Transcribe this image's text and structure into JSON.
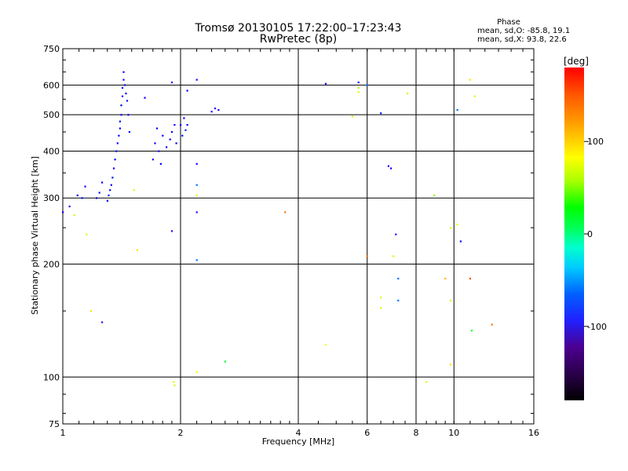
{
  "chart_data": {
    "type": "scatter",
    "title": "Tromsø 20130105 17:22:00–17:23:43",
    "subtitle": "RwPretec (8p)",
    "xlabel": "Frequency [MHz]",
    "ylabel": "Stationary phase Virtual Height [km]",
    "x_scale": "log",
    "y_scale": "log",
    "xlim": [
      1,
      16
    ],
    "ylim": [
      75,
      750
    ],
    "x_ticks": [
      1,
      2,
      4,
      6,
      8,
      10,
      16
    ],
    "x_tick_labels": [
      "1",
      "2",
      "4",
      "6",
      "8",
      "10",
      "16"
    ],
    "y_ticks": [
      75,
      100,
      200,
      300,
      400,
      500,
      600,
      750
    ],
    "y_tick_labels": [
      "75",
      "100",
      "200",
      "300",
      "400",
      "500",
      "600",
      "750"
    ],
    "grid": true,
    "stats": {
      "heading": "Phase",
      "line_o": "mean, sd,O: -85.8, 19.1",
      "line_x": "mean, sd,X:  93.8, 22.6"
    },
    "colorbar": {
      "label": "[deg]",
      "range": [
        -180,
        180
      ],
      "ticks": [
        100,
        0,
        -100
      ],
      "tick_labels": [
        "100",
        "0",
        "-100"
      ]
    },
    "cluster_points": [
      {
        "x": 1.09,
        "y": 305,
        "phase": -90
      },
      {
        "x": 1.12,
        "y": 300,
        "phase": -85
      },
      {
        "x": 1.14,
        "y": 322,
        "phase": -100
      },
      {
        "x": 1.22,
        "y": 300,
        "phase": -90
      },
      {
        "x": 1.24,
        "y": 310,
        "phase": -85
      },
      {
        "x": 1.26,
        "y": 330,
        "phase": -95
      },
      {
        "x": 1.3,
        "y": 295,
        "phase": -90
      },
      {
        "x": 1.31,
        "y": 305,
        "phase": -80
      },
      {
        "x": 1.32,
        "y": 315,
        "phase": -88
      },
      {
        "x": 1.33,
        "y": 325,
        "phase": -92
      },
      {
        "x": 1.34,
        "y": 340,
        "phase": -85
      },
      {
        "x": 1.35,
        "y": 360,
        "phase": -95
      },
      {
        "x": 1.36,
        "y": 380,
        "phase": -90
      },
      {
        "x": 1.37,
        "y": 400,
        "phase": -85
      },
      {
        "x": 1.38,
        "y": 420,
        "phase": -88
      },
      {
        "x": 1.39,
        "y": 440,
        "phase": -92
      },
      {
        "x": 1.4,
        "y": 460,
        "phase": -90
      },
      {
        "x": 1.4,
        "y": 480,
        "phase": -85
      },
      {
        "x": 1.41,
        "y": 500,
        "phase": -95
      },
      {
        "x": 1.41,
        "y": 530,
        "phase": -90
      },
      {
        "x": 1.42,
        "y": 560,
        "phase": -88
      },
      {
        "x": 1.42,
        "y": 590,
        "phase": -92
      },
      {
        "x": 1.43,
        "y": 620,
        "phase": -95
      },
      {
        "x": 1.43,
        "y": 650,
        "phase": -100
      },
      {
        "x": 1.44,
        "y": 600,
        "phase": -85
      },
      {
        "x": 1.45,
        "y": 570,
        "phase": -90
      },
      {
        "x": 1.46,
        "y": 545,
        "phase": -85
      },
      {
        "x": 1.47,
        "y": 500,
        "phase": -90
      },
      {
        "x": 1.48,
        "y": 450,
        "phase": -88
      },
      {
        "x": 1.7,
        "y": 380,
        "phase": -95
      },
      {
        "x": 1.72,
        "y": 420,
        "phase": -100
      },
      {
        "x": 1.74,
        "y": 460,
        "phase": -90
      },
      {
        "x": 1.76,
        "y": 400,
        "phase": -110
      },
      {
        "x": 1.78,
        "y": 370,
        "phase": -95
      },
      {
        "x": 1.8,
        "y": 440,
        "phase": -100
      },
      {
        "x": 1.84,
        "y": 410,
        "phase": -95
      },
      {
        "x": 1.88,
        "y": 430,
        "phase": -100
      },
      {
        "x": 1.9,
        "y": 450,
        "phase": -95
      },
      {
        "x": 1.93,
        "y": 470,
        "phase": -95
      },
      {
        "x": 1.95,
        "y": 420,
        "phase": -90
      },
      {
        "x": 2.0,
        "y": 470,
        "phase": -90
      },
      {
        "x": 2.02,
        "y": 440,
        "phase": -85
      },
      {
        "x": 2.04,
        "y": 490,
        "phase": -95
      },
      {
        "x": 2.06,
        "y": 455,
        "phase": -80
      },
      {
        "x": 2.08,
        "y": 470,
        "phase": -100
      },
      {
        "x": 2.4,
        "y": 510,
        "phase": -110
      },
      {
        "x": 2.45,
        "y": 520,
        "phase": -110
      },
      {
        "x": 2.5,
        "y": 515,
        "phase": -110
      }
    ],
    "scattered_points": [
      {
        "x": 1.0,
        "y": 275,
        "phase": -95
      },
      {
        "x": 1.04,
        "y": 285,
        "phase": -110
      },
      {
        "x": 1.07,
        "y": 270,
        "phase": 100
      },
      {
        "x": 1.15,
        "y": 240,
        "phase": 100
      },
      {
        "x": 1.18,
        "y": 150,
        "phase": 120
      },
      {
        "x": 1.26,
        "y": 140,
        "phase": -140
      },
      {
        "x": 1.52,
        "y": 315,
        "phase": 100
      },
      {
        "x": 1.55,
        "y": 218,
        "phase": 120
      },
      {
        "x": 1.62,
        "y": 555,
        "phase": -100
      },
      {
        "x": 1.9,
        "y": 610,
        "phase": -100
      },
      {
        "x": 1.9,
        "y": 245,
        "phase": -120
      },
      {
        "x": 1.92,
        "y": 97,
        "phase": 100
      },
      {
        "x": 1.93,
        "y": 95,
        "phase": 100
      },
      {
        "x": 2.08,
        "y": 580,
        "phase": -90
      },
      {
        "x": 2.2,
        "y": 620,
        "phase": -120
      },
      {
        "x": 2.2,
        "y": 370,
        "phase": -110
      },
      {
        "x": 2.2,
        "y": 325,
        "phase": -60
      },
      {
        "x": 2.2,
        "y": 305,
        "phase": 100
      },
      {
        "x": 2.2,
        "y": 275,
        "phase": -130
      },
      {
        "x": 2.2,
        "y": 205,
        "phase": -60
      },
      {
        "x": 2.2,
        "y": 103,
        "phase": 110
      },
      {
        "x": 2.6,
        "y": 110,
        "phase": 30
      },
      {
        "x": 3.7,
        "y": 275,
        "phase": 150
      },
      {
        "x": 4.7,
        "y": 605,
        "phase": -100
      },
      {
        "x": 4.7,
        "y": 122,
        "phase": 110
      },
      {
        "x": 5.5,
        "y": 495,
        "phase": 100
      },
      {
        "x": 5.7,
        "y": 610,
        "phase": -110
      },
      {
        "x": 5.7,
        "y": 590,
        "phase": 90
      },
      {
        "x": 5.7,
        "y": 575,
        "phase": 100
      },
      {
        "x": 6.0,
        "y": 210,
        "phase": 150
      },
      {
        "x": 6.0,
        "y": 600,
        "phase": -60
      },
      {
        "x": 6.5,
        "y": 505,
        "phase": -80
      },
      {
        "x": 6.5,
        "y": 163,
        "phase": 100
      },
      {
        "x": 6.5,
        "y": 153,
        "phase": 100
      },
      {
        "x": 6.8,
        "y": 365,
        "phase": -110
      },
      {
        "x": 6.9,
        "y": 360,
        "phase": -100
      },
      {
        "x": 7.0,
        "y": 210,
        "phase": 100
      },
      {
        "x": 7.1,
        "y": 240,
        "phase": -130
      },
      {
        "x": 7.2,
        "y": 183,
        "phase": -60
      },
      {
        "x": 7.2,
        "y": 160,
        "phase": -60
      },
      {
        "x": 7.6,
        "y": 570,
        "phase": 100
      },
      {
        "x": 8.5,
        "y": 97,
        "phase": 100
      },
      {
        "x": 8.9,
        "y": 305,
        "phase": 80
      },
      {
        "x": 9.5,
        "y": 183,
        "phase": 130
      },
      {
        "x": 9.8,
        "y": 250,
        "phase": 100
      },
      {
        "x": 9.8,
        "y": 160,
        "phase": 100
      },
      {
        "x": 9.8,
        "y": 108,
        "phase": 120
      },
      {
        "x": 10.2,
        "y": 515,
        "phase": -60
      },
      {
        "x": 10.2,
        "y": 255,
        "phase": 110
      },
      {
        "x": 10.4,
        "y": 230,
        "phase": -100
      },
      {
        "x": 11.0,
        "y": 620,
        "phase": 120
      },
      {
        "x": 11.0,
        "y": 183,
        "phase": 160
      },
      {
        "x": 11.3,
        "y": 560,
        "phase": 100
      },
      {
        "x": 11.1,
        "y": 133,
        "phase": 40
      },
      {
        "x": 12.5,
        "y": 138,
        "phase": 150
      }
    ]
  }
}
